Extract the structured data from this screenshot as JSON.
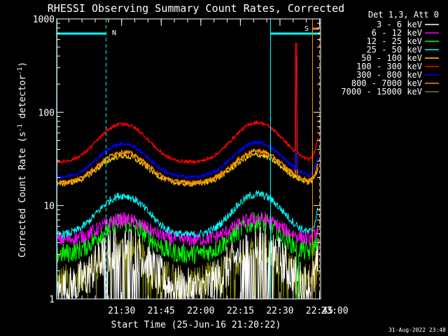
{
  "chart_data": {
    "type": "line",
    "title": "RHESSI Observing Summary Count Rates, Corrected",
    "xlabel": "Start Time (25-Jun-16 21:20:22)",
    "ylabel_main": "Corrected Count Rate (s",
    "ylabel_sup1": "-1",
    "ylabel_mid": " detector",
    "ylabel_sup2": "-1",
    "ylabel_end": ")",
    "yscale": "log",
    "ylim": [
      1,
      1000
    ],
    "xlim_minutes": [
      -24.6,
      75.4
    ],
    "x_ticks": [
      {
        "label": "21:30",
        "min": 0
      },
      {
        "label": "21:45",
        "min": 15
      },
      {
        "label": "22:00",
        "min": 30
      },
      {
        "label": "22:15",
        "min": 45
      },
      {
        "label": "22:30",
        "min": 60
      },
      {
        "label": "22:45",
        "min": 75
      },
      {
        "label": "23:00",
        "min": 90
      }
    ],
    "y_ticks": [
      {
        "label": "1",
        "v": 1
      },
      {
        "label": "10",
        "v": 10
      },
      {
        "label": "100",
        "v": 100
      },
      {
        "label": "1000",
        "v": 1000
      }
    ],
    "legend_position": "top-right-outside",
    "legend_header": "Det 1,3, Att 0",
    "series": [
      {
        "name": "3 - 6 keV",
        "color": "#ffffff"
      },
      {
        "name": "6 - 12 keV",
        "color": "#ff00ff"
      },
      {
        "name": "12 - 25 keV",
        "color": "#00ff00"
      },
      {
        "name": "25 - 50 keV",
        "color": "#00ffff"
      },
      {
        "name": "50 - 100 keV",
        "color": "#ffd700"
      },
      {
        "name": "100 - 300 keV",
        "color": "#ff0000"
      },
      {
        "name": "300 - 800 keV",
        "color": "#0000ff"
      },
      {
        "name": "800 - 7000 keV",
        "color": "#ff8c00"
      },
      {
        "name": "7000 - 15000 keV",
        "color": "#808000"
      }
    ],
    "annotations": [
      {
        "text": "N",
        "color": "#00ffff"
      },
      {
        "text": "S",
        "color": "#ff8c00"
      }
    ],
    "timestamp": "31-Aug-2022 23:48"
  }
}
